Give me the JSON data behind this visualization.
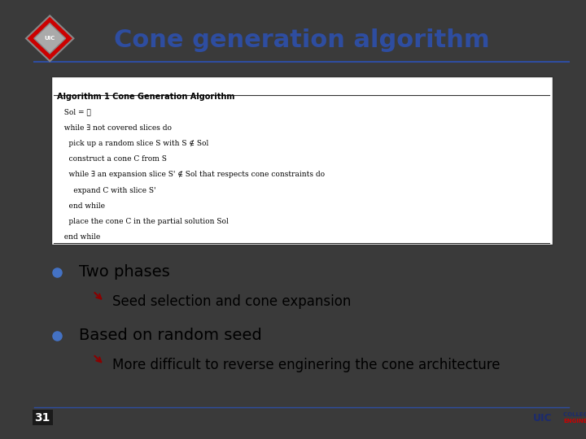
{
  "title": "Cone generation algorithm",
  "title_color": "#2E4DA0",
  "bg_color": "#FFFFFF",
  "slide_bg": "#3A3A3A",
  "header_line_color": "#2E4DA0",
  "bullet1": "Two phases",
  "sub_bullet1": "Seed selection and cone expansion",
  "bullet2": "Based on random seed",
  "sub_bullet2": "More difficult to reverse enginering the cone architecture",
  "bullet_color": "#4472C4",
  "sub_bullet_color": "#8B0000",
  "text_color": "#000000",
  "page_num": "31",
  "uic_text_color": "#1C2B6E",
  "uic_accent_color": "#CC0000",
  "algo_lines": [
    "Algorithm 1 Cone Generation Algorithm",
    "  Sol = ∅",
    "  while ∃ not covered slices do",
    "    pick up a random slice S with S ∉ Sol",
    "    construct a cone C from S",
    "    while ∃ an expansion slice S' ∉ Sol that respects cone constraints do",
    "      expand C with slice S'",
    "    end while",
    "    place the cone C in the partial solution Sol",
    "  end while"
  ]
}
